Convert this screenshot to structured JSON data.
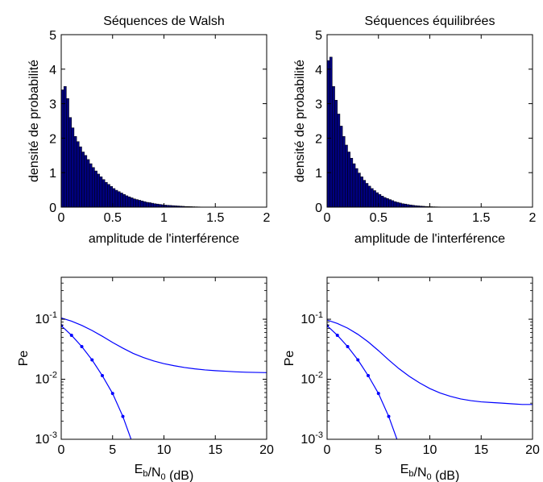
{
  "figure": {
    "background": "#ffffff",
    "line_color": "#0000ff",
    "bar_fill": "#00007f"
  },
  "chart_data": [
    {
      "type": "bar",
      "title": "Séquences de Walsh",
      "xlabel": "amplitude de l'interférence",
      "ylabel": "densité de probabilité",
      "xlim": [
        0,
        2
      ],
      "ylim": [
        0,
        5
      ],
      "xticks": [
        "0",
        "0.5",
        "1",
        "1.5",
        "2"
      ],
      "yticks": [
        "0",
        "1",
        "2",
        "3",
        "4",
        "5"
      ],
      "bin_width": 0.025,
      "bin_start": 0,
      "values": [
        3.4,
        3.5,
        3.15,
        2.6,
        2.3,
        2.05,
        1.9,
        1.75,
        1.6,
        1.5,
        1.38,
        1.26,
        1.15,
        1.05,
        0.96,
        0.88,
        0.8,
        0.72,
        0.66,
        0.6,
        0.54,
        0.49,
        0.45,
        0.41,
        0.37,
        0.33,
        0.3,
        0.27,
        0.24,
        0.22,
        0.2,
        0.18,
        0.16,
        0.14,
        0.13,
        0.115,
        0.1,
        0.09,
        0.08,
        0.07,
        0.06,
        0.055,
        0.05,
        0.045,
        0.04,
        0.035,
        0.03,
        0.025,
        0.02,
        0.018,
        0.015,
        0.012,
        0.01,
        0.008,
        0.006,
        0.005,
        0.004,
        0.003,
        0.002,
        0.002
      ]
    },
    {
      "type": "bar",
      "title": "Séquences équilibrées",
      "xlabel": "amplitude de l'interférence",
      "ylabel": "densité de probabilité",
      "xlim": [
        0,
        2
      ],
      "ylim": [
        0,
        5
      ],
      "xticks": [
        "0",
        "0.5",
        "1",
        "1.5",
        "2"
      ],
      "yticks": [
        "0",
        "1",
        "2",
        "3",
        "4",
        "5"
      ],
      "bin_width": 0.025,
      "bin_start": 0,
      "values": [
        4.25,
        4.35,
        3.5,
        3.1,
        2.7,
        2.35,
        2.05,
        1.8,
        1.6,
        1.42,
        1.26,
        1.12,
        0.99,
        0.88,
        0.78,
        0.69,
        0.61,
        0.54,
        0.48,
        0.42,
        0.37,
        0.32,
        0.28,
        0.25,
        0.22,
        0.19,
        0.16,
        0.14,
        0.12,
        0.1,
        0.09,
        0.075,
        0.065,
        0.055,
        0.045,
        0.038,
        0.032,
        0.026,
        0.021,
        0.017,
        0.014,
        0.011,
        0.009,
        0.007,
        0.005,
        0.004,
        0.003,
        0.002
      ]
    },
    {
      "type": "line",
      "title": "",
      "xlabel": "E_b/N_0 (dB)",
      "ylabel": "Pe",
      "xlim": [
        0,
        20
      ],
      "ylim": [
        0.001,
        0.5
      ],
      "yscale": "log",
      "xticks": [
        "0",
        "5",
        "10",
        "15",
        "20"
      ],
      "yticks": [
        {
          "base": "10",
          "exp": "-3",
          "value": 0.001
        },
        {
          "base": "10",
          "exp": "-2",
          "value": 0.01
        },
        {
          "base": "10",
          "exp": "-1",
          "value": 0.1
        }
      ],
      "series": [
        {
          "markers": false,
          "x": [
            0,
            1,
            2,
            3,
            4,
            5,
            6,
            7,
            8,
            9,
            10,
            11,
            12,
            13,
            14,
            15,
            16,
            17,
            18,
            19,
            20
          ],
          "y": [
            0.105,
            0.093,
            0.079,
            0.065,
            0.052,
            0.041,
            0.033,
            0.027,
            0.023,
            0.0202,
            0.0182,
            0.0168,
            0.0157,
            0.0149,
            0.0143,
            0.0139,
            0.0136,
            0.0133,
            0.0131,
            0.013,
            0.0129
          ]
        },
        {
          "markers": true,
          "x": [
            0,
            1,
            2,
            3,
            4,
            5,
            6,
            6.8
          ],
          "y": [
            0.078,
            0.054,
            0.035,
            0.021,
            0.0115,
            0.0058,
            0.0024,
            0.001
          ]
        }
      ]
    },
    {
      "type": "line",
      "title": "",
      "xlabel": "E_b/N_0 (dB)",
      "ylabel": "Pe",
      "xlim": [
        0,
        20
      ],
      "ylim": [
        0.001,
        0.5
      ],
      "yscale": "log",
      "xticks": [
        "0",
        "5",
        "10",
        "15",
        "20"
      ],
      "yticks": [
        {
          "base": "10",
          "exp": "-3",
          "value": 0.001
        },
        {
          "base": "10",
          "exp": "-2",
          "value": 0.01
        },
        {
          "base": "10",
          "exp": "-1",
          "value": 0.1
        }
      ],
      "series": [
        {
          "markers": false,
          "x": [
            0,
            1,
            2,
            3,
            4,
            5,
            6,
            7,
            8,
            9,
            10,
            11,
            12,
            13,
            14,
            15,
            16,
            17,
            18,
            19,
            20
          ],
          "y": [
            0.097,
            0.085,
            0.071,
            0.056,
            0.042,
            0.03,
            0.021,
            0.015,
            0.0112,
            0.0087,
            0.007,
            0.0059,
            0.0052,
            0.0047,
            0.0044,
            0.0042,
            0.0041,
            0.004,
            0.0039,
            0.0038,
            0.0038
          ]
        },
        {
          "markers": true,
          "x": [
            0,
            1,
            2,
            3,
            4,
            5,
            6,
            6.8
          ],
          "y": [
            0.078,
            0.054,
            0.035,
            0.021,
            0.0115,
            0.0058,
            0.0024,
            0.001
          ]
        }
      ]
    }
  ]
}
